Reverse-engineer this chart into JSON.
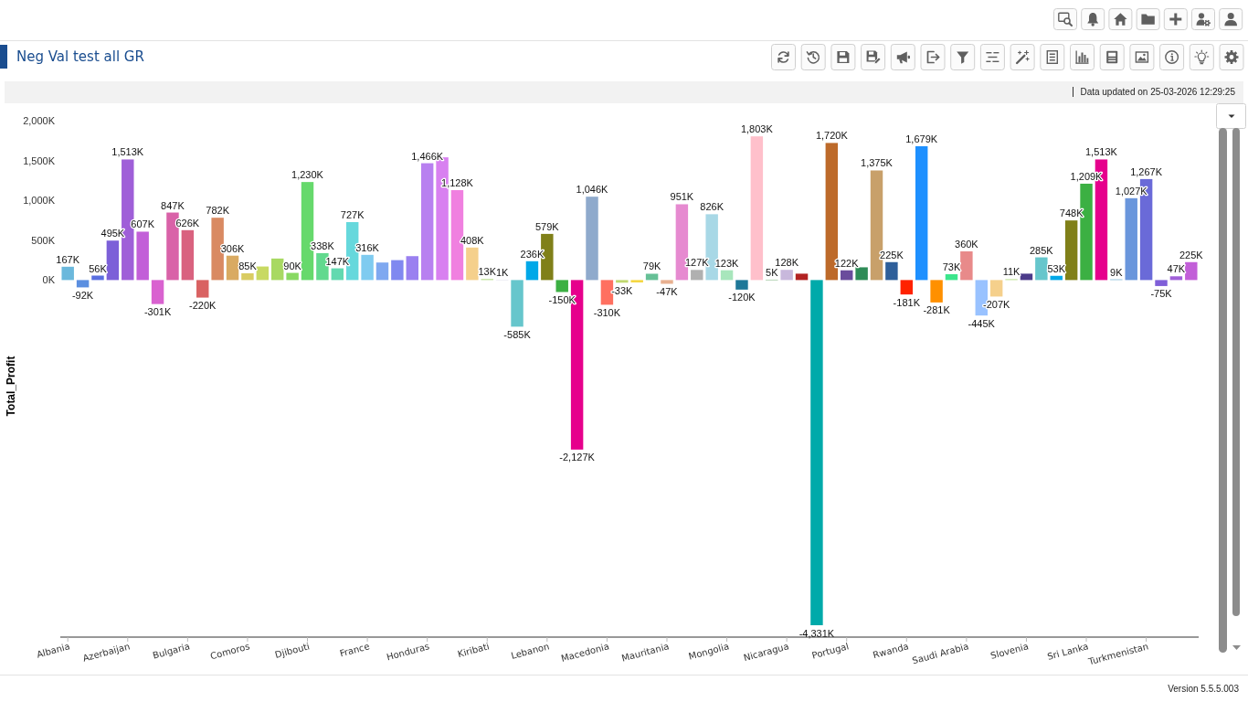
{
  "chart_data": {
    "type": "bar",
    "title": "Neg Val test all GR",
    "ylabel": "Total_Profit",
    "annotations": [
      "Data updated on 25-03-2026 12:29:25",
      "Version 5.5.5.003"
    ],
    "categories": [
      "Albania",
      null,
      null,
      null,
      "Azerbaijan",
      null,
      null,
      null,
      "Bulgaria",
      null,
      null,
      null,
      "Comoros",
      null,
      null,
      null,
      "Djibouti",
      null,
      null,
      null,
      "France",
      null,
      null,
      null,
      "Honduras",
      null,
      null,
      null,
      "Kiribati",
      null,
      null,
      null,
      "Lebanon",
      null,
      null,
      null,
      "Macedonia",
      null,
      null,
      null,
      "Mauritania",
      null,
      null,
      null,
      "Mongolia",
      null,
      null,
      null,
      "Nicaragua",
      null,
      null,
      null,
      "Portugal",
      null,
      null,
      null,
      "Rwanda",
      null,
      null,
      null,
      "Saudi Arabia",
      null,
      null,
      null,
      "Slovenia",
      null,
      null,
      null,
      "Sri Lanka",
      null,
      null,
      null,
      "Turkmenistan",
      null,
      null,
      null
    ],
    "values": [
      167,
      -92,
      56,
      495,
      1513,
      607,
      -301,
      847,
      626,
      -220,
      782,
      306,
      85,
      170,
      270,
      90,
      1230,
      338,
      147,
      727,
      316,
      220,
      250,
      300,
      1466,
      1540,
      1128,
      408,
      13,
      1,
      -585,
      236,
      579,
      -150,
      -2127,
      1046,
      -310,
      -33,
      -30,
      79,
      -47,
      951,
      127,
      826,
      123,
      -120,
      1803,
      5,
      128,
      80,
      -4331,
      1720,
      122,
      160,
      1375,
      225,
      -181,
      1679,
      -281,
      73,
      360,
      -445,
      -207,
      11,
      80,
      285,
      53,
      748,
      1209,
      1513,
      9,
      1027,
      1267,
      -75,
      47,
      225
    ],
    "value_labels": [
      "167K",
      "-92K",
      "56K",
      "495K",
      "1,513K",
      "607K",
      "-301K",
      "847K",
      "626K",
      "-220K",
      "782K",
      "306K",
      "85K",
      null,
      null,
      "90K",
      "1,230K",
      "338K",
      "147K",
      "727K",
      "316K",
      null,
      null,
      null,
      "1,466K",
      null,
      "1,128K",
      "408K",
      "13K",
      "1K",
      "-585K",
      "236K",
      "579K",
      "-150K",
      "-2,127K",
      "1,046K",
      "-310K",
      "-33K",
      null,
      "79K",
      "-47K",
      "951K",
      "127K",
      "826K",
      "123K",
      "-120K",
      "1,803K",
      "5K",
      "128K",
      null,
      "-4,331K",
      "1,720K",
      "122K",
      null,
      "1,375K",
      "225K",
      "-181K",
      "1,679K",
      "-281K",
      "73K",
      "360K",
      "-445K",
      "-207K",
      "11K",
      null,
      "285K",
      "53K",
      "748K",
      "1,209K",
      "1,513K",
      "9K",
      "1,027K",
      "1,267K",
      "-75K",
      "47K",
      "225K"
    ],
    "colors": [
      "#6bb8dc",
      "#5b8fe0",
      "#5a6fe0",
      "#7c60d8",
      "#9f5fd8",
      "#c25fd8",
      "#d962d0",
      "#d962a8",
      "#d9627f",
      "#d96262",
      "#d98a62",
      "#d9aa62",
      "#d9cc62",
      "#c8d962",
      "#a8d962",
      "#88d962",
      "#66d96c",
      "#62d98e",
      "#62d9b0",
      "#66d8dc",
      "#7fcbf0",
      "#7fa8f0",
      "#8088f0",
      "#9a80f0",
      "#b880f0",
      "#d880f0",
      "#f080e0",
      "#f5d08c",
      "#b8e08c",
      "#4b3b8a",
      "#66c6cc",
      "#00a8e8",
      "#808019",
      "#3cb043",
      "#e6008c",
      "#8faacc",
      "#ff7060",
      "#c0d870",
      "#f5d742",
      "#66c096",
      "#e8b090",
      "#e68ad0",
      "#b0b0b0",
      "#a8d8e6",
      "#a8e6bc",
      "#1f7898",
      "#ffc0cb",
      "#5aa05a",
      "#c8b8dc",
      "#b22222",
      "#00aaaa",
      "#bd6a2a",
      "#6a4c9c",
      "#2e8b57",
      "#c8a06a",
      "#2e5f9a",
      "#ff2200",
      "#1e90ff",
      "#ff9000",
      "#3ce68c",
      "#e88a8a",
      "#99c2ff",
      "#f5d08c",
      "#b8e08c",
      "#4b3b8a",
      "#66c6cc",
      "#00a8e8",
      "#808019",
      "#3cb043",
      "#e6008c",
      "#7fb8d8",
      "#6a96dc",
      "#6a6ad8",
      "#7f5fd8",
      "#a05fd8",
      "#c25fd8"
    ],
    "ylim": [
      -4480,
      2000
    ],
    "yticks": [
      {
        "value": 0,
        "label": "0K"
      },
      {
        "value": 500,
        "label": "500K"
      },
      {
        "value": 1000,
        "label": "1,000K"
      },
      {
        "value": 1500,
        "label": "1,500K"
      },
      {
        "value": 2000,
        "label": "2,000K"
      }
    ]
  }
}
